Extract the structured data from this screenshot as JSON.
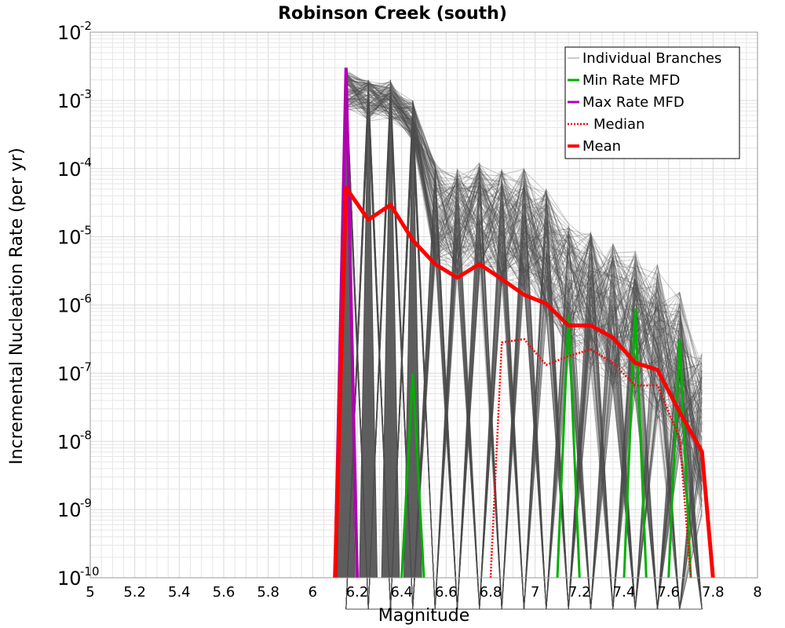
{
  "chart_data": {
    "type": "line",
    "title": "Robinson Creek (south)",
    "xlabel": "Magnitude",
    "ylabel": "Incremental Nucleation Rate (per yr)",
    "xlim": [
      5,
      8
    ],
    "ylim_log10": [
      -10,
      -2
    ],
    "yscale": "log",
    "grid": true,
    "legend_position": "top-right",
    "x_ticks": [
      "5",
      "5.2",
      "5.4",
      "5.6",
      "5.8",
      "6",
      "6.2",
      "6.4",
      "6.6",
      "6.8",
      "7",
      "7.2",
      "7.4",
      "7.6",
      "7.8",
      "8"
    ],
    "y_ticks": [
      {
        "base": "10",
        "exp": "-10",
        "value": -10
      },
      {
        "base": "10",
        "exp": "-9",
        "value": -9
      },
      {
        "base": "10",
        "exp": "-8",
        "value": -8
      },
      {
        "base": "10",
        "exp": "-7",
        "value": -7
      },
      {
        "base": "10",
        "exp": "-6",
        "value": -6
      },
      {
        "base": "10",
        "exp": "-5",
        "value": -5
      },
      {
        "base": "10",
        "exp": "-4",
        "value": -4
      },
      {
        "base": "10",
        "exp": "-3",
        "value": -3
      },
      {
        "base": "10",
        "exp": "-2",
        "value": -2
      }
    ],
    "legend": [
      "Individual Branches",
      "Min Rate MFD",
      "Max Rate MFD",
      "Median",
      "Mean"
    ],
    "colors": {
      "branches": "#4d4d4d",
      "min": "#00b000",
      "max": "#b000b0",
      "median": "#ff0000",
      "mean": "#ff0000",
      "grid": "#e6e6e6"
    },
    "branch_bins": [
      6.15,
      6.25,
      6.35,
      6.45,
      6.55,
      6.65,
      6.75,
      6.85,
      6.95,
      7.05,
      7.15,
      7.25,
      7.35,
      7.45,
      7.55,
      7.65,
      7.75
    ],
    "branch_max_log10": [
      -2.55,
      -2.7,
      -2.7,
      -3.0,
      -3.9,
      -4.0,
      -3.9,
      -4.0,
      -4.0,
      -4.3,
      -4.8,
      -4.9,
      -5.1,
      -5.2,
      -5.4,
      -5.8,
      -6.7
    ],
    "series": [
      {
        "name": "Mean",
        "x": [
          6.15,
          6.25,
          6.35,
          6.45,
          6.55,
          6.65,
          6.75,
          6.85,
          6.95,
          7.05,
          7.15,
          7.25,
          7.35,
          7.45,
          7.55,
          7.65,
          7.75
        ],
        "log10_y": [
          -4.28,
          -4.75,
          -4.53,
          -5.05,
          -5.4,
          -5.6,
          -5.4,
          -5.62,
          -5.85,
          -5.98,
          -6.3,
          -6.3,
          -6.48,
          -6.85,
          -6.95,
          -7.57,
          -8.15
        ],
        "values": [
          5.2e-05,
          1.8e-05,
          2.9e-05,
          8.9e-06,
          4e-06,
          2.5e-06,
          4e-06,
          2.4e-06,
          1.4e-06,
          1.05e-06,
          5e-07,
          5e-07,
          3.3e-07,
          1.4e-07,
          1.1e-07,
          2.7e-08,
          7e-09
        ]
      },
      {
        "name": "Median",
        "x": [
          6.8,
          6.85,
          6.95,
          7.05,
          7.15,
          7.25,
          7.35,
          7.45,
          7.55,
          7.65,
          7.7
        ],
        "log10_y": [
          -10,
          -6.55,
          -6.5,
          -6.88,
          -6.75,
          -6.65,
          -6.85,
          -7.18,
          -7.18,
          -7.95,
          -10
        ],
        "values": [
          1e-10,
          2.8e-07,
          3.2e-07,
          1.3e-07,
          1.8e-07,
          2.2e-07,
          1.4e-07,
          6.6e-08,
          6.6e-08,
          1.1e-08,
          1e-10
        ]
      },
      {
        "name": "Max Rate MFD",
        "x": [
          6.1,
          6.15,
          6.2
        ],
        "log10_y": [
          -10,
          -2.52,
          -10
        ],
        "values": [
          1e-10,
          0.003,
          1e-10
        ]
      },
      {
        "name": "Min Rate MFD",
        "segments": [
          {
            "x": [
              6.4,
              6.45,
              6.5
            ],
            "log10_y": [
              -10,
              -7.0,
              -10
            ],
            "peak_value": 1e-07
          },
          {
            "x": [
              7.1,
              7.15,
              7.2
            ],
            "log10_y": [
              -10,
              -6.15,
              -10
            ],
            "peak_value": 7e-07
          },
          {
            "x": [
              7.4,
              7.45,
              7.5
            ],
            "log10_y": [
              -10,
              -6.05,
              -10
            ],
            "peak_value": 9e-07
          },
          {
            "x": [
              7.6,
              7.65,
              7.7
            ],
            "log10_y": [
              -10,
              -6.5,
              -10
            ],
            "peak_value": 3.2e-07
          }
        ]
      }
    ]
  }
}
